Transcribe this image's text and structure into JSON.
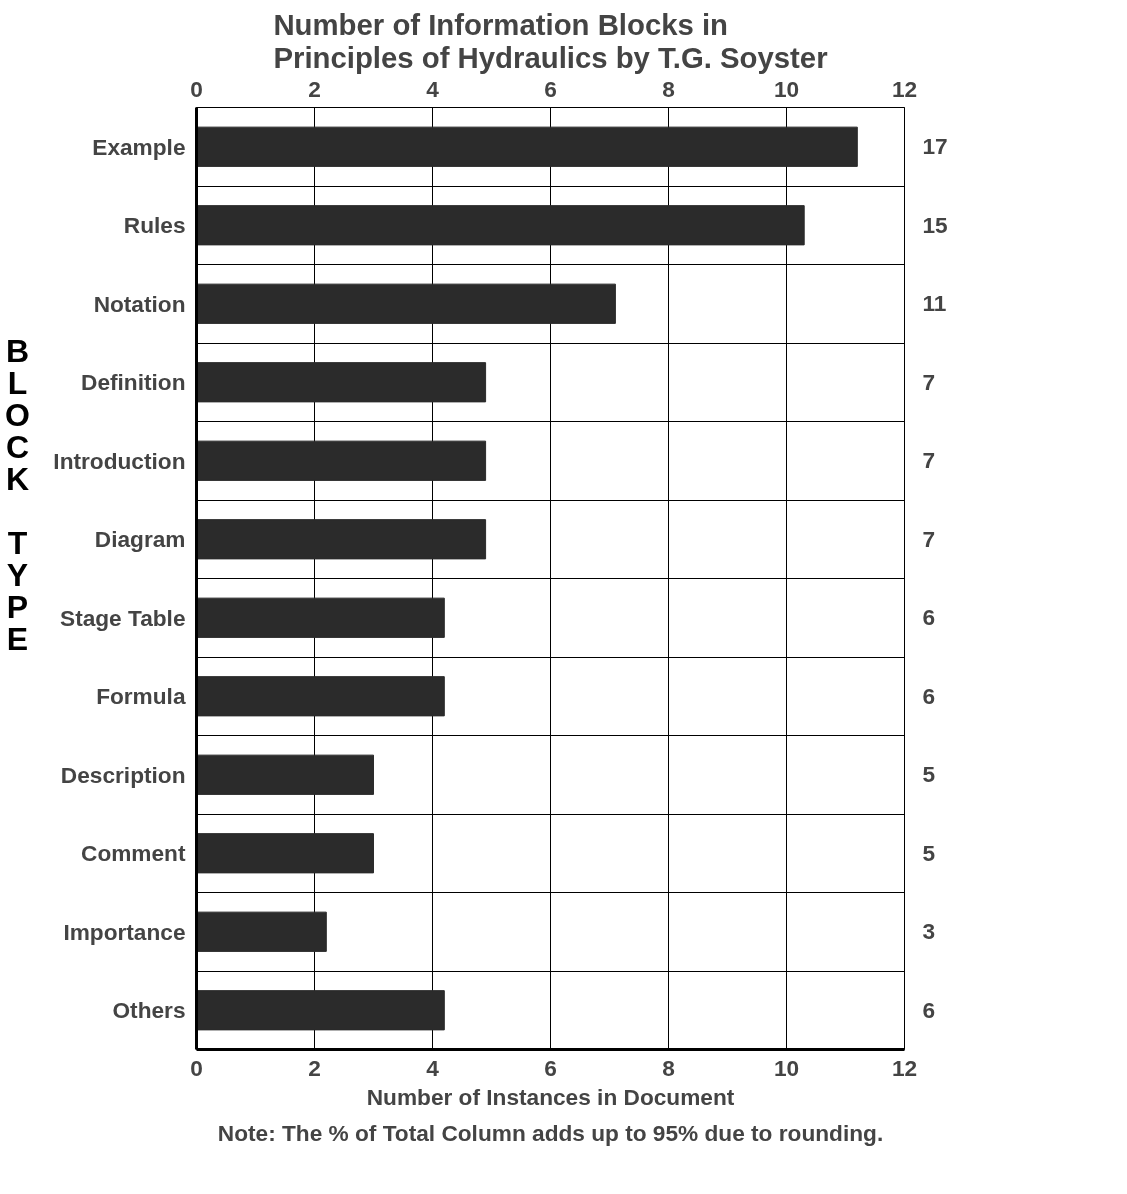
{
  "chart_data": {
    "type": "bar",
    "orientation": "horizontal",
    "title": "Number of Information Blocks in\nPrinciples of Hydraulics by T.G. Soyster",
    "xlabel": "Number of Instances in Document",
    "ylabel": "BLOCK TYPE",
    "annotations": [
      "17",
      "15",
      "11",
      "7",
      "7",
      "7",
      "6",
      "6",
      "5",
      "5",
      "3",
      "6",
      "Note: The % of Total Column adds up to 95% due to rounding."
    ],
    "categories": [
      "Example",
      "Rules",
      "Notation",
      "Definition",
      "Introduction",
      "Diagram",
      "Stage Table",
      "Formula",
      "Description",
      "Comment",
      "Importance",
      "Others"
    ],
    "values": [
      11.2,
      10.3,
      7.1,
      4.9,
      4.9,
      4.9,
      4.2,
      4.2,
      3.0,
      3.0,
      2.2,
      4.2
    ],
    "color": "#2b2b2b",
    "xlim": [
      0,
      12
    ],
    "xticks": [
      0,
      2,
      4,
      6,
      8,
      10,
      12
    ],
    "x2lim": [
      0,
      12
    ],
    "x2ticks": [
      0,
      2,
      4,
      6,
      8,
      10,
      12
    ],
    "grid": true
  }
}
